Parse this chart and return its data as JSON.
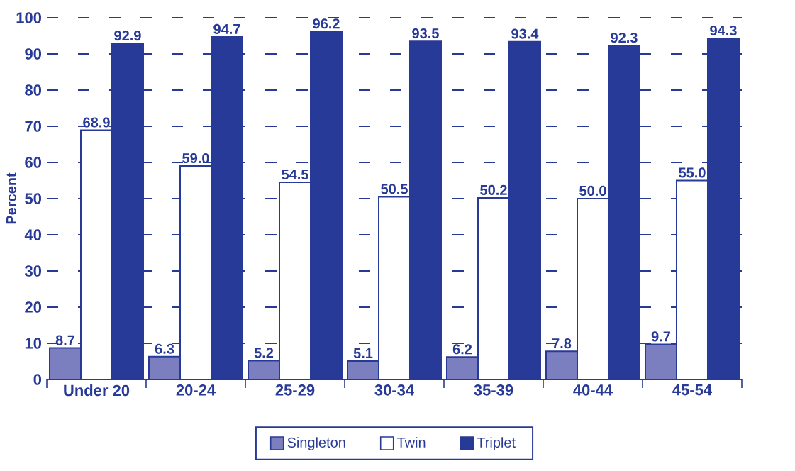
{
  "chart_data": {
    "type": "bar",
    "ylabel": "Percent",
    "categories": [
      "Under 20",
      "20-24",
      "25-29",
      "30-34",
      "35-39",
      "40-44",
      "45-54"
    ],
    "series": [
      {
        "name": "Singleton",
        "color": "#7b7fbf",
        "values": [
          8.7,
          6.3,
          5.2,
          5.1,
          6.2,
          7.8,
          9.7
        ],
        "value_labels": [
          "8.7",
          "6.3",
          "5.2",
          "5.1",
          "6.2",
          "7.8",
          "9.7"
        ]
      },
      {
        "name": "Twin",
        "color": "#ffffff",
        "values": [
          68.9,
          59.0,
          54.5,
          50.5,
          50.2,
          50.0,
          55.0
        ],
        "value_labels": [
          "68.9",
          "59.0",
          "54.5",
          "50.5",
          "50.2",
          "50.0",
          "55.0"
        ]
      },
      {
        "name": "Triplet",
        "color": "#283a97",
        "values": [
          92.9,
          94.7,
          96.2,
          93.5,
          93.4,
          92.3,
          94.3
        ],
        "value_labels": [
          "92.9",
          "94.7",
          "96.2",
          "93.5",
          "93.4",
          "92.3",
          "94.3"
        ]
      }
    ],
    "ylim": [
      0,
      100
    ],
    "yticks": [
      0,
      10,
      20,
      30,
      40,
      50,
      60,
      70,
      80,
      90,
      100
    ],
    "grid": "y",
    "legend": "bottom"
  }
}
